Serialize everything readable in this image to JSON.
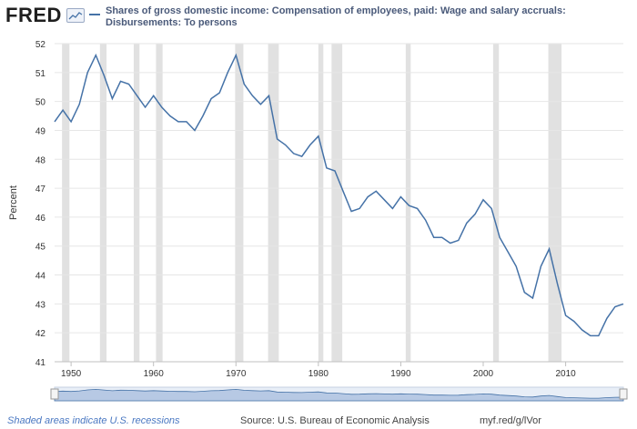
{
  "header": {
    "logo_text": "FRED",
    "logo_icon": "line-chart-icon",
    "title": "Shares of gross domestic income: Compensation of employees, paid: Wage and salary accruals: Disbursements: To persons"
  },
  "footer": {
    "recessions_note": "Shaded areas indicate U.S. recessions",
    "source": "Source: U.S. Bureau of Economic Analysis",
    "short_url": "myf.red/g/lVor"
  },
  "colors": {
    "line": "#4572a7",
    "recession": "#e1e1e1",
    "grid": "#e6e6e6"
  },
  "chart_data": {
    "type": "line",
    "title": "Shares of gross domestic income: Compensation of employees, paid: Wage and salary accruals: Disbursements: To persons",
    "xlabel": "",
    "ylabel": "Percent",
    "xlim": [
      1948,
      2017
    ],
    "ylim": [
      41,
      52
    ],
    "yticks": [
      41,
      42,
      43,
      44,
      45,
      46,
      47,
      48,
      49,
      50,
      51,
      52
    ],
    "xticks": [
      1950,
      1960,
      1970,
      1980,
      1990,
      2000,
      2010
    ],
    "grid": true,
    "recessions": [
      [
        1948.9,
        1949.8
      ],
      [
        1953.5,
        1954.3
      ],
      [
        1957.6,
        1958.3
      ],
      [
        1960.3,
        1961.1
      ],
      [
        1969.9,
        1970.9
      ],
      [
        1973.9,
        1975.2
      ],
      [
        1980.0,
        1980.6
      ],
      [
        1981.6,
        1982.9
      ],
      [
        1990.6,
        1991.2
      ],
      [
        2001.2,
        2001.9
      ],
      [
        2007.9,
        2009.5
      ]
    ],
    "series": [
      {
        "name": "Shares of gross domestic income: Compensation of employees, paid: Wage and salary accruals: Disbursements: To persons",
        "x": [
          1948,
          1949,
          1950,
          1951,
          1952,
          1953,
          1954,
          1955,
          1956,
          1957,
          1958,
          1959,
          1960,
          1961,
          1962,
          1963,
          1964,
          1965,
          1966,
          1967,
          1968,
          1969,
          1970,
          1971,
          1972,
          1973,
          1974,
          1975,
          1976,
          1977,
          1978,
          1979,
          1980,
          1981,
          1982,
          1983,
          1984,
          1985,
          1986,
          1987,
          1988,
          1989,
          1990,
          1991,
          1992,
          1993,
          1994,
          1995,
          1996,
          1997,
          1998,
          1999,
          2000,
          2001,
          2002,
          2003,
          2004,
          2005,
          2006,
          2007,
          2008,
          2009,
          2010,
          2011,
          2012,
          2013,
          2014,
          2015,
          2016,
          2017
        ],
        "values": [
          49.3,
          49.7,
          49.3,
          49.9,
          51.0,
          51.6,
          50.9,
          50.1,
          50.7,
          50.6,
          50.2,
          49.8,
          50.2,
          49.8,
          49.5,
          49.3,
          49.3,
          49.0,
          49.5,
          50.1,
          50.3,
          51.0,
          51.6,
          50.6,
          50.2,
          49.9,
          50.2,
          48.7,
          48.5,
          48.2,
          48.1,
          48.5,
          48.8,
          47.7,
          47.6,
          46.9,
          46.2,
          46.3,
          46.7,
          46.9,
          46.6,
          46.3,
          46.7,
          46.4,
          46.3,
          45.9,
          45.3,
          45.3,
          45.1,
          45.2,
          45.8,
          46.1,
          46.6,
          46.3,
          45.3,
          44.8,
          44.3,
          43.4,
          43.2,
          44.3,
          44.9,
          43.7,
          42.6,
          42.4,
          42.1,
          41.9,
          41.9,
          42.5,
          42.9,
          43.0
        ]
      }
    ]
  }
}
